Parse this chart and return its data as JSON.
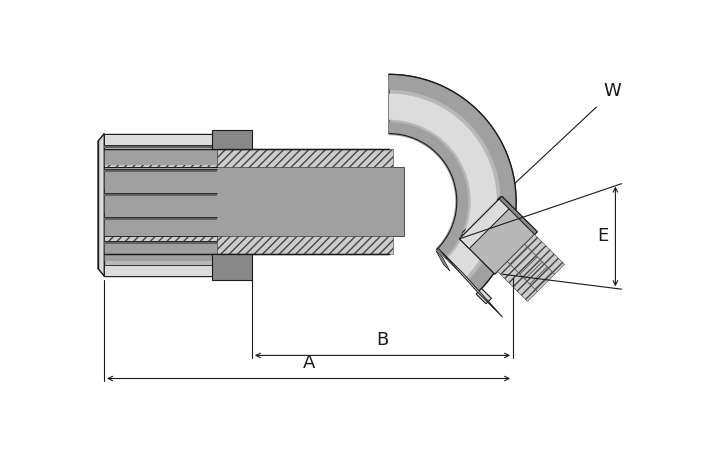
{
  "bg_color": "#ffffff",
  "line_color": "#1a1a1a",
  "c_light": "#dcdcdc",
  "c_mid": "#b8b8b8",
  "c_dark": "#888888",
  "c_vdark": "#606060",
  "c_white": "#f5f5f5",
  "c_hatch_bg": "#cccccc",
  "c_hatch_fg": "#444444",
  "c_shadow": "#a0a0a0",
  "c_highlight": "#ececec",
  "fig_width": 7.08,
  "fig_height": 4.72,
  "dpi": 100,
  "labels": [
    "W",
    "E",
    "B",
    "A"
  ],
  "label_fontsize": 13
}
